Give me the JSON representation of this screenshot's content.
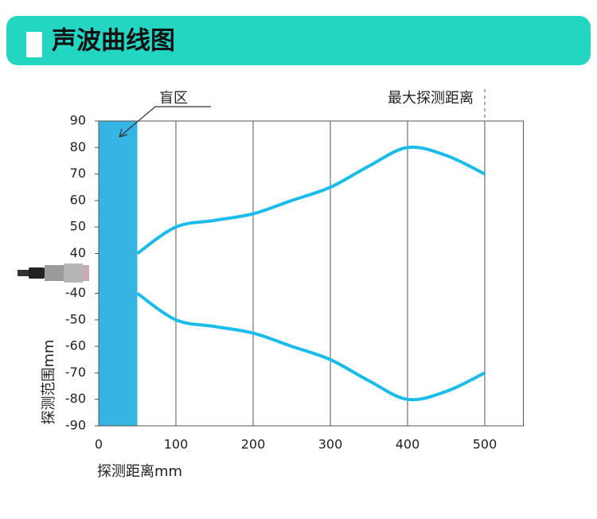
{
  "header": {
    "title": "声波曲线图"
  },
  "chart_data": {
    "type": "line",
    "x": [
      50,
      100,
      150,
      200,
      250,
      300,
      350,
      400,
      450,
      500
    ],
    "series": [
      {
        "name": null,
        "color": "#1bbce9",
        "values": [
          40,
          50,
          52.5,
          55,
          60,
          65,
          73,
          80,
          77,
          70
        ]
      },
      {
        "name": null,
        "color": "#1bbce9",
        "values": [
          -40,
          -50,
          -52.5,
          -55,
          -60,
          -65,
          -73,
          -80,
          -77,
          -70
        ]
      }
    ],
    "xlim": [
      0,
      550
    ],
    "xticks": [
      0,
      100,
      200,
      300,
      400,
      500
    ],
    "ylim": [
      -90,
      90
    ],
    "y_break": [
      -40,
      40
    ],
    "yticks": [
      90,
      80,
      70,
      60,
      50,
      40,
      -40,
      -50,
      -60,
      -70,
      -80,
      -90
    ],
    "x_label": "探测距离mm",
    "y_label": "探测范围mm",
    "grid": true,
    "blind_zone": {
      "label": "盲区",
      "xlim": [
        0,
        50
      ],
      "color": "#35b5e3"
    },
    "max_range": {
      "label": "最大探测距离",
      "x": 500
    }
  }
}
